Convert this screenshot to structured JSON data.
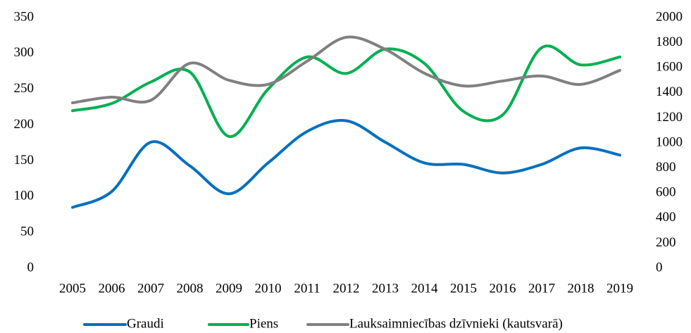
{
  "chart_data": {
    "type": "line",
    "categories": [
      "2005",
      "2006",
      "2007",
      "2008",
      "2009",
      "2010",
      "2011",
      "2012",
      "2013",
      "2014",
      "2015",
      "2016",
      "2017",
      "2018",
      "2019"
    ],
    "series": [
      {
        "name": "Graudi",
        "color": "#0070c0",
        "values": [
          85,
          107,
          176,
          143,
          104,
          147,
          191,
          206,
          176,
          147,
          145,
          133,
          145,
          168,
          158
        ]
      },
      {
        "name": "Piens",
        "color": "#00b050",
        "values": [
          220,
          230,
          260,
          274,
          184,
          250,
          295,
          272,
          306,
          286,
          219,
          214,
          308,
          284,
          295
        ]
      },
      {
        "name": "Lauksaimniecības dzīvnieki (kautsvarā)",
        "color": "#808080",
        "axis": "y2",
        "values": [
          1320,
          1365,
          1340,
          1635,
          1500,
          1467,
          1652,
          1843,
          1747,
          1556,
          1455,
          1494,
          1534,
          1467,
          1579
        ]
      }
    ],
    "ylim": [
      0,
      350
    ],
    "yticks": [
      0,
      50,
      100,
      150,
      200,
      250,
      300,
      350
    ],
    "y2lim": [
      0,
      2000
    ],
    "y2ticks": [
      0,
      200,
      400,
      600,
      800,
      1000,
      1200,
      1400,
      1600,
      1800,
      2000
    ],
    "grid": false,
    "legend": "bottom"
  }
}
